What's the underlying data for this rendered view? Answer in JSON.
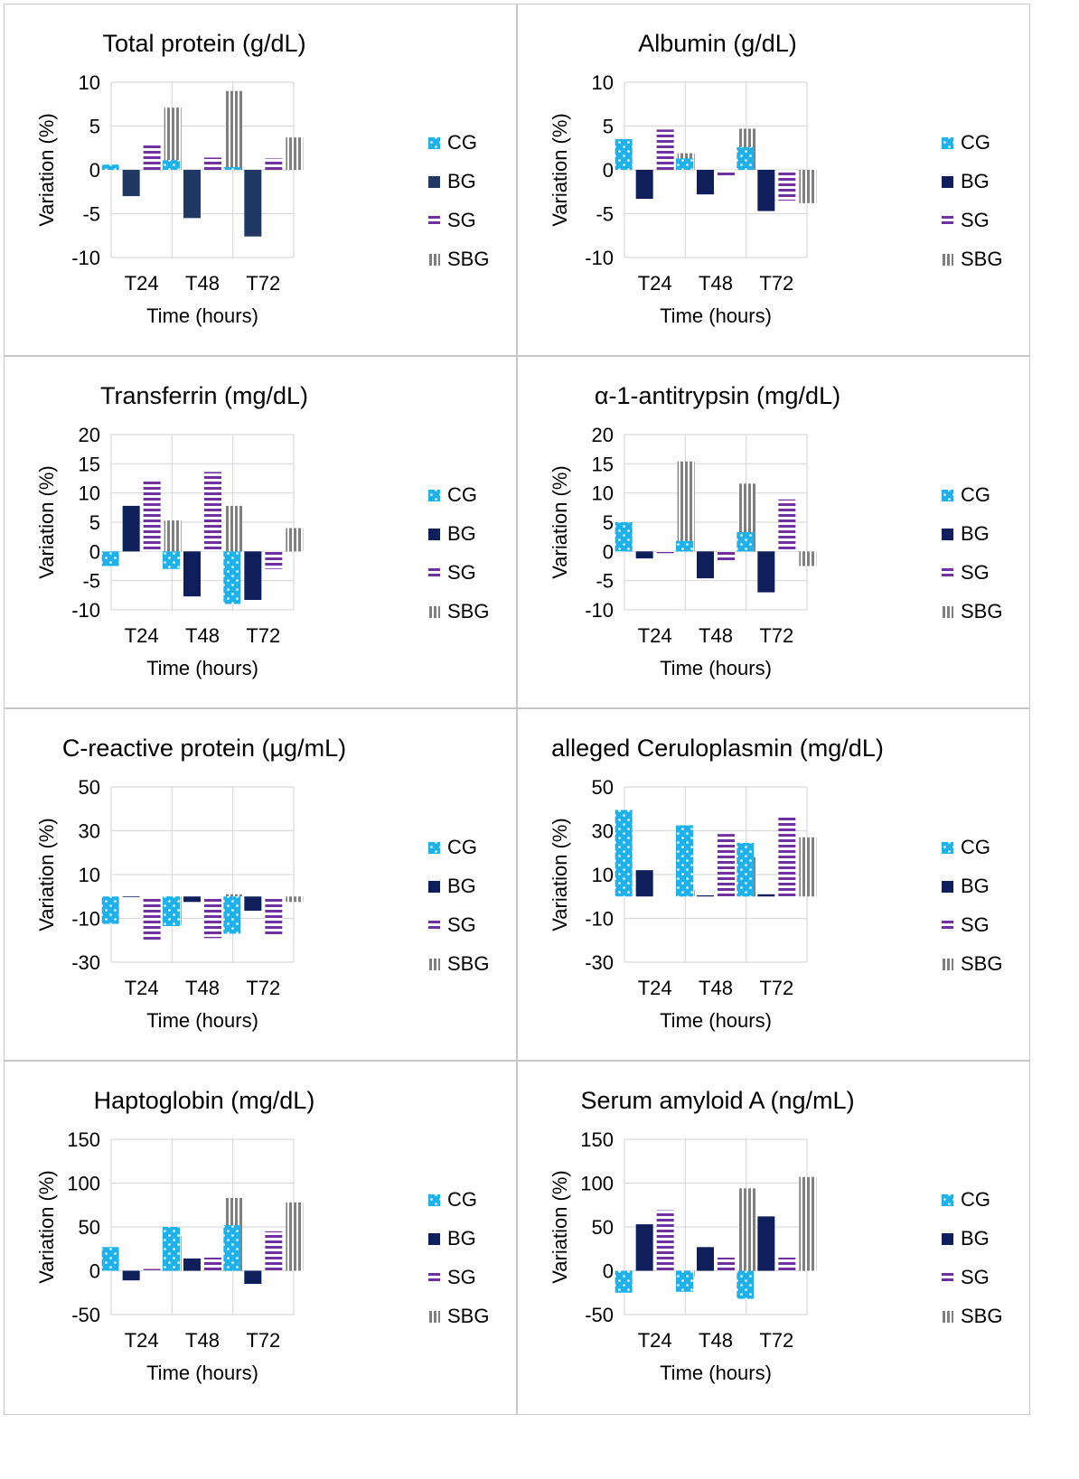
{
  "colors": {
    "CG": "#1fb2ea",
    "BG": "#1f3864",
    "BG_dark": "#0f1f5c",
    "SG": "#7030a0",
    "SBG": "#7f7f7f",
    "grid": "#d9d9d9"
  },
  "chart_data": [
    {
      "type": "bar",
      "title": "Total protein (g/dL)",
      "xlabel": "Time (hours)",
      "ylabel": "Variation (%)",
      "categories": [
        "T24",
        "T48",
        "T72"
      ],
      "ylim": [
        -10,
        10
      ],
      "yticks": [
        10,
        5,
        0,
        -5,
        -10
      ],
      "bg_style": "light",
      "series": [
        {
          "name": "CG",
          "values": [
            0.6,
            1.1,
            0.3
          ]
        },
        {
          "name": "BG",
          "values": [
            -3.0,
            -5.5,
            -7.6
          ]
        },
        {
          "name": "SG",
          "values": [
            3.0,
            1.4,
            1.3
          ]
        },
        {
          "name": "SBG",
          "values": [
            7.1,
            9.0,
            3.7
          ]
        }
      ]
    },
    {
      "type": "bar",
      "title": "Albumin (g/dL)",
      "xlabel": "Time (hours)",
      "ylabel": "Variation (%)",
      "categories": [
        "T24",
        "T48",
        "T72"
      ],
      "ylim": [
        -10,
        10
      ],
      "yticks": [
        10,
        5,
        0,
        -5,
        -10
      ],
      "bg_style": "dark",
      "series": [
        {
          "name": "CG",
          "values": [
            3.5,
            1.3,
            2.6
          ]
        },
        {
          "name": "BG",
          "values": [
            -3.3,
            -2.8,
            -4.7
          ]
        },
        {
          "name": "SG",
          "values": [
            4.6,
            -0.8,
            -3.5
          ]
        },
        {
          "name": "SBG",
          "values": [
            1.9,
            4.7,
            -3.8
          ]
        }
      ]
    },
    {
      "type": "bar",
      "title": "Transferrin  (mg/dL)",
      "xlabel": "Time (hours)",
      "ylabel": "Variation (%)",
      "categories": [
        "T24",
        "T48",
        "T72"
      ],
      "ylim": [
        -10,
        20
      ],
      "yticks": [
        20,
        15,
        10,
        5,
        0,
        -5,
        -10
      ],
      "bg_style": "dark",
      "series": [
        {
          "name": "CG",
          "values": [
            -2.5,
            -3.0,
            -9.0
          ]
        },
        {
          "name": "BG",
          "values": [
            7.8,
            -7.7,
            -8.3
          ]
        },
        {
          "name": "SG",
          "values": [
            12.0,
            13.6,
            -3.0
          ]
        },
        {
          "name": "SBG",
          "values": [
            5.3,
            7.8,
            4.0
          ]
        }
      ]
    },
    {
      "type": "bar",
      "title": "α-1-antitrypsin (mg/dL)",
      "xlabel": "Time (hours)",
      "ylabel": "Variation (%)",
      "categories": [
        "T24",
        "T48",
        "T72"
      ],
      "ylim": [
        -10,
        20
      ],
      "yticks": [
        20,
        15,
        10,
        5,
        0,
        -5,
        -10
      ],
      "bg_style": "dark",
      "series": [
        {
          "name": "CG",
          "values": [
            5.0,
            1.8,
            3.3
          ]
        },
        {
          "name": "BG",
          "values": [
            -1.2,
            -4.6,
            -7.0
          ]
        },
        {
          "name": "SG",
          "values": [
            -0.3,
            -1.8,
            8.9
          ]
        },
        {
          "name": "SBG",
          "values": [
            15.4,
            11.6,
            -2.5
          ]
        }
      ]
    },
    {
      "type": "bar",
      "title": "C-reactive protein (µg/mL)",
      "xlabel": "Time (hours)",
      "ylabel": "Variation (%)",
      "categories": [
        "T24",
        "T48",
        "T72"
      ],
      "ylim": [
        -30,
        50
      ],
      "yticks": [
        50,
        30,
        10,
        -10,
        -30
      ],
      "bg_style": "dark",
      "series": [
        {
          "name": "CG",
          "values": [
            -12.5,
            -13.5,
            -17.0
          ]
        },
        {
          "name": "BG",
          "values": [
            0.0,
            -2.5,
            -6.5
          ]
        },
        {
          "name": "SG",
          "values": [
            -20.0,
            -19.0,
            -17.5
          ]
        },
        {
          "name": "SBG",
          "values": [
            -13.0,
            1.0,
            -2.5
          ]
        }
      ]
    },
    {
      "type": "bar",
      "title": "alleged Ceruloplasmin (mg/dL)",
      "xlabel": "Time (hours)",
      "ylabel": "Variation (%)",
      "categories": [
        "T24",
        "T48",
        "T72"
      ],
      "ylim": [
        -30,
        50
      ],
      "yticks": [
        50,
        30,
        10,
        -10,
        -30
      ],
      "bg_style": "dark",
      "series": [
        {
          "name": "CG",
          "values": [
            39.5,
            32.5,
            24.5
          ]
        },
        {
          "name": "BG",
          "values": [
            12.0,
            0.5,
            1.0
          ]
        },
        {
          "name": "SG",
          "values": [
            0.0,
            28.5,
            36.5
          ]
        },
        {
          "name": "SBG",
          "values": [
            3.0,
            18.0,
            27.0
          ]
        }
      ]
    },
    {
      "type": "bar",
      "title": "Haptoglobin (mg/dL)",
      "xlabel": "Time (hours)",
      "ylabel": "Variation (%)",
      "categories": [
        "T24",
        "T48",
        "T72"
      ],
      "ylim": [
        -50,
        150
      ],
      "yticks": [
        150,
        100,
        50,
        0,
        -50
      ],
      "bg_style": "dark",
      "series": [
        {
          "name": "CG",
          "values": [
            27,
            50,
            52
          ]
        },
        {
          "name": "BG",
          "values": [
            -11,
            14,
            -15
          ]
        },
        {
          "name": "SG",
          "values": [
            2,
            15,
            45
          ]
        },
        {
          "name": "SBG",
          "values": [
            40,
            83,
            78
          ]
        }
      ]
    },
    {
      "type": "bar",
      "title": "Serum amyloid A (ng/mL)",
      "xlabel": "Time (hours)",
      "ylabel": "Variation (%)",
      "categories": [
        "T24",
        "T48",
        "T72"
      ],
      "ylim": [
        -50,
        150
      ],
      "yticks": [
        150,
        100,
        50,
        0,
        -50
      ],
      "bg_style": "dark",
      "series": [
        {
          "name": "CG",
          "values": [
            -25,
            -24,
            -32
          ]
        },
        {
          "name": "BG",
          "values": [
            53,
            27,
            62
          ]
        },
        {
          "name": "SG",
          "values": [
            69,
            15,
            15
          ]
        },
        {
          "name": "SBG",
          "values": [
            -7,
            94,
            107
          ]
        }
      ]
    }
  ]
}
